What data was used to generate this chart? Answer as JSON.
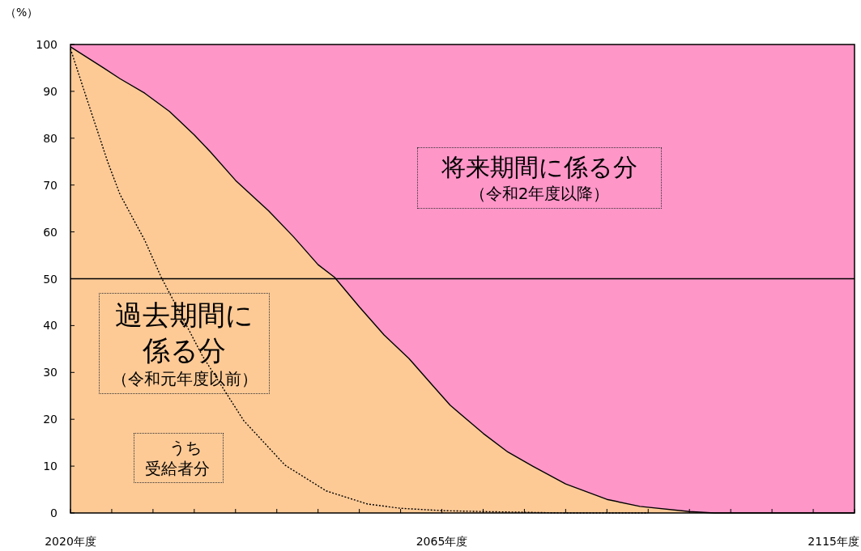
{
  "chart_data": {
    "type": "area",
    "stacked": true,
    "ylabel": "（%）",
    "x": [
      2020,
      2024,
      2026,
      2029,
      2032,
      2035,
      2037,
      2040,
      2044,
      2047,
      2050,
      2052,
      2055,
      2058,
      2061,
      2064,
      2066,
      2070,
      2073,
      2076,
      2080,
      2085,
      2089,
      2095,
      2098,
      2115
    ],
    "series": [
      {
        "name": "過去期間に係る分",
        "color": "#fdca96",
        "line_style": "solid",
        "values": [
          99.5,
          95,
          92.7,
          89.6,
          85.7,
          80.7,
          77,
          71,
          64.5,
          59,
          53,
          50.3,
          44,
          38,
          33,
          27,
          23,
          17,
          13,
          10,
          6.2,
          2.9,
          1.4,
          0.3,
          0,
          0
        ]
      },
      {
        "name": "将来期間に係る分",
        "color": "#fe96c8",
        "values": [
          0.5,
          5,
          7.3,
          10.4,
          14.3,
          19.3,
          23,
          29,
          35.5,
          41,
          47,
          49.7,
          56,
          62,
          67,
          73,
          77,
          83,
          87,
          90,
          93.8,
          97.1,
          98.6,
          99.7,
          100,
          100
        ]
      },
      {
        "name": "うち受給者分",
        "type": "line",
        "line_style": "dotted",
        "color": "#000000",
        "x": [
          2020,
          2022,
          2024.5,
          2026,
          2029,
          2031,
          2036,
          2041,
          2046,
          2051,
          2056,
          2060,
          2065,
          2070,
          2080,
          2090
        ],
        "values": [
          99.1,
          88.3,
          75,
          68,
          58.2,
          50.3,
          33.5,
          19.7,
          10.2,
          4.7,
          1.9,
          1,
          0.5,
          0.3,
          0,
          0
        ]
      }
    ],
    "annotations": [
      "（令和元年度以前）",
      "（令和2年度以降）"
    ],
    "ref_lines": [
      {
        "axis": "y",
        "value": 50,
        "color": "#000000",
        "line_style": "solid"
      }
    ],
    "xlim": [
      2020,
      2115
    ],
    "xticks": [
      {
        "value": 2020,
        "label": "2020年度"
      },
      {
        "value": 2025,
        "label": null
      },
      {
        "value": 2030,
        "label": null
      },
      {
        "value": 2035,
        "label": null
      },
      {
        "value": 2040,
        "label": null
      },
      {
        "value": 2045,
        "label": null
      },
      {
        "value": 2050,
        "label": null
      },
      {
        "value": 2055,
        "label": null
      },
      {
        "value": 2060,
        "label": null
      },
      {
        "value": 2065,
        "label": "2065年度"
      },
      {
        "value": 2070,
        "label": null
      },
      {
        "value": 2075,
        "label": null
      },
      {
        "value": 2080,
        "label": null
      },
      {
        "value": 2085,
        "label": null
      },
      {
        "value": 2090,
        "label": null
      },
      {
        "value": 2095,
        "label": null
      },
      {
        "value": 2100,
        "label": null
      },
      {
        "value": 2105,
        "label": null
      },
      {
        "value": 2110,
        "label": null
      },
      {
        "value": 2115,
        "label": "2115年度"
      }
    ],
    "ylim": [
      0,
      100
    ],
    "yticks": [
      0,
      10,
      20,
      30,
      40,
      50,
      60,
      70,
      80,
      90,
      100
    ],
    "grid": false
  }
}
